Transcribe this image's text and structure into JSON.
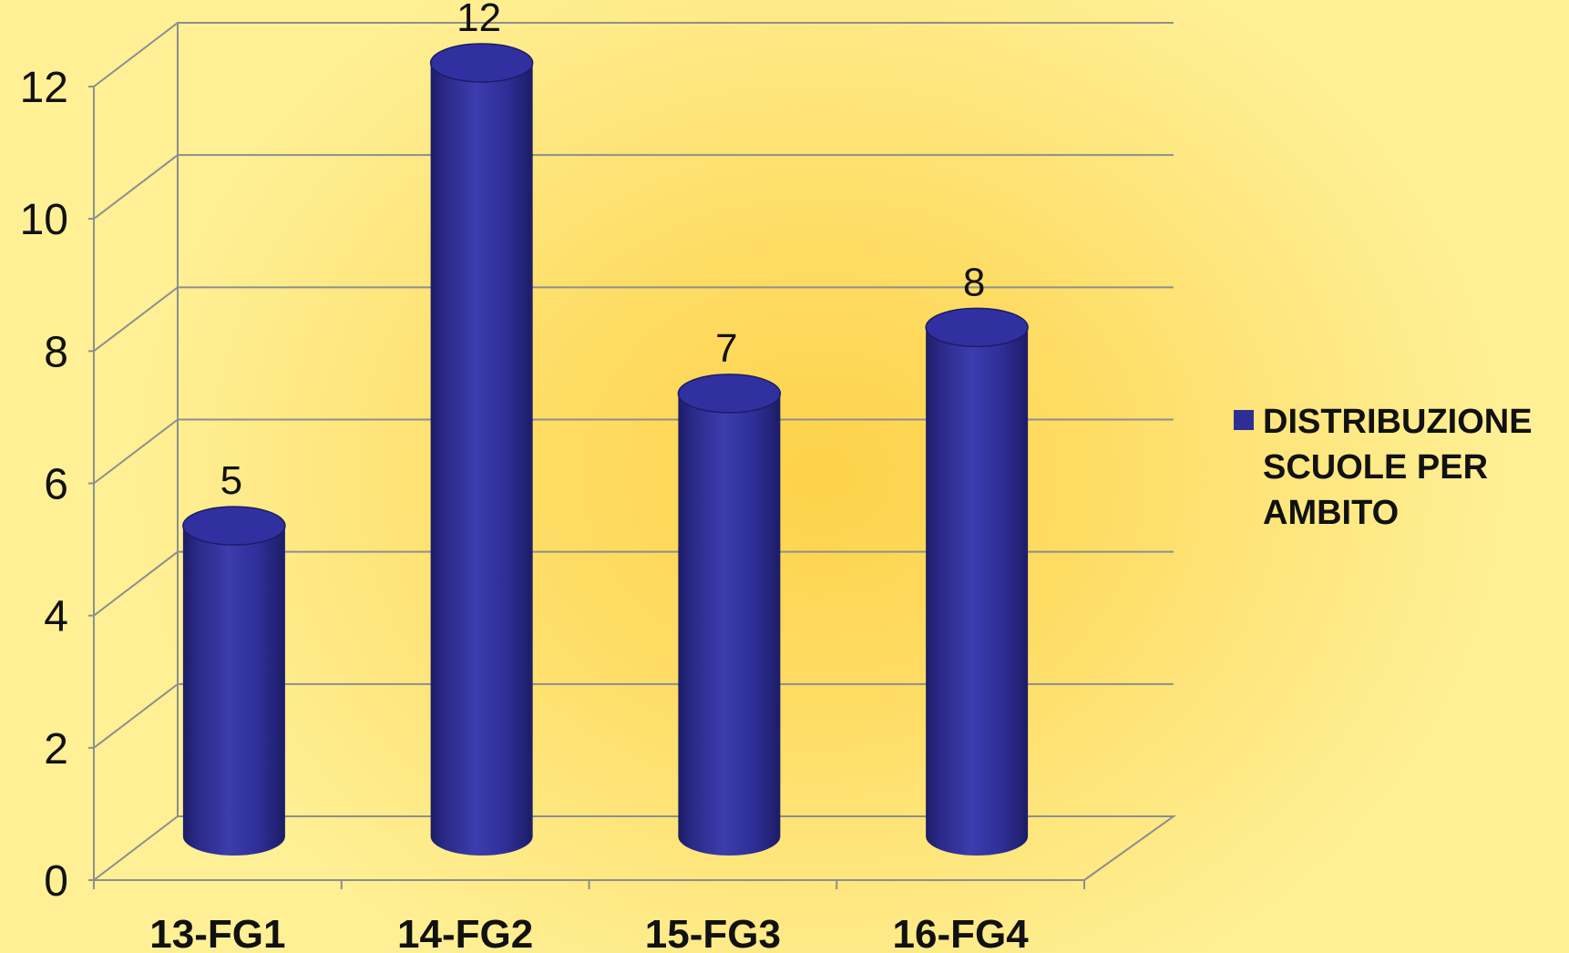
{
  "chart_data": {
    "type": "bar",
    "style": "3d-cylinder",
    "categories": [
      "13-FG1",
      "14-FG2",
      "15-FG3",
      "16-FG4"
    ],
    "series": [
      {
        "name": "DISTRIBUZIONE SCUOLE PER AMBITO",
        "values": [
          5,
          12,
          7,
          8
        ]
      }
    ],
    "data_labels": [
      "5",
      "12",
      "7",
      "8"
    ],
    "y_ticks": [
      "0",
      "2",
      "4",
      "6",
      "8",
      "10",
      "12"
    ],
    "ylim": [
      0,
      12
    ],
    "grid": true,
    "legend_position": "right",
    "colors": {
      "bar": "#2e2e96",
      "bar_dark": "#1c1c66",
      "bar_light": "#3c3cae",
      "bar_top": "#3030a0",
      "grid": "#8c8f8f"
    }
  }
}
